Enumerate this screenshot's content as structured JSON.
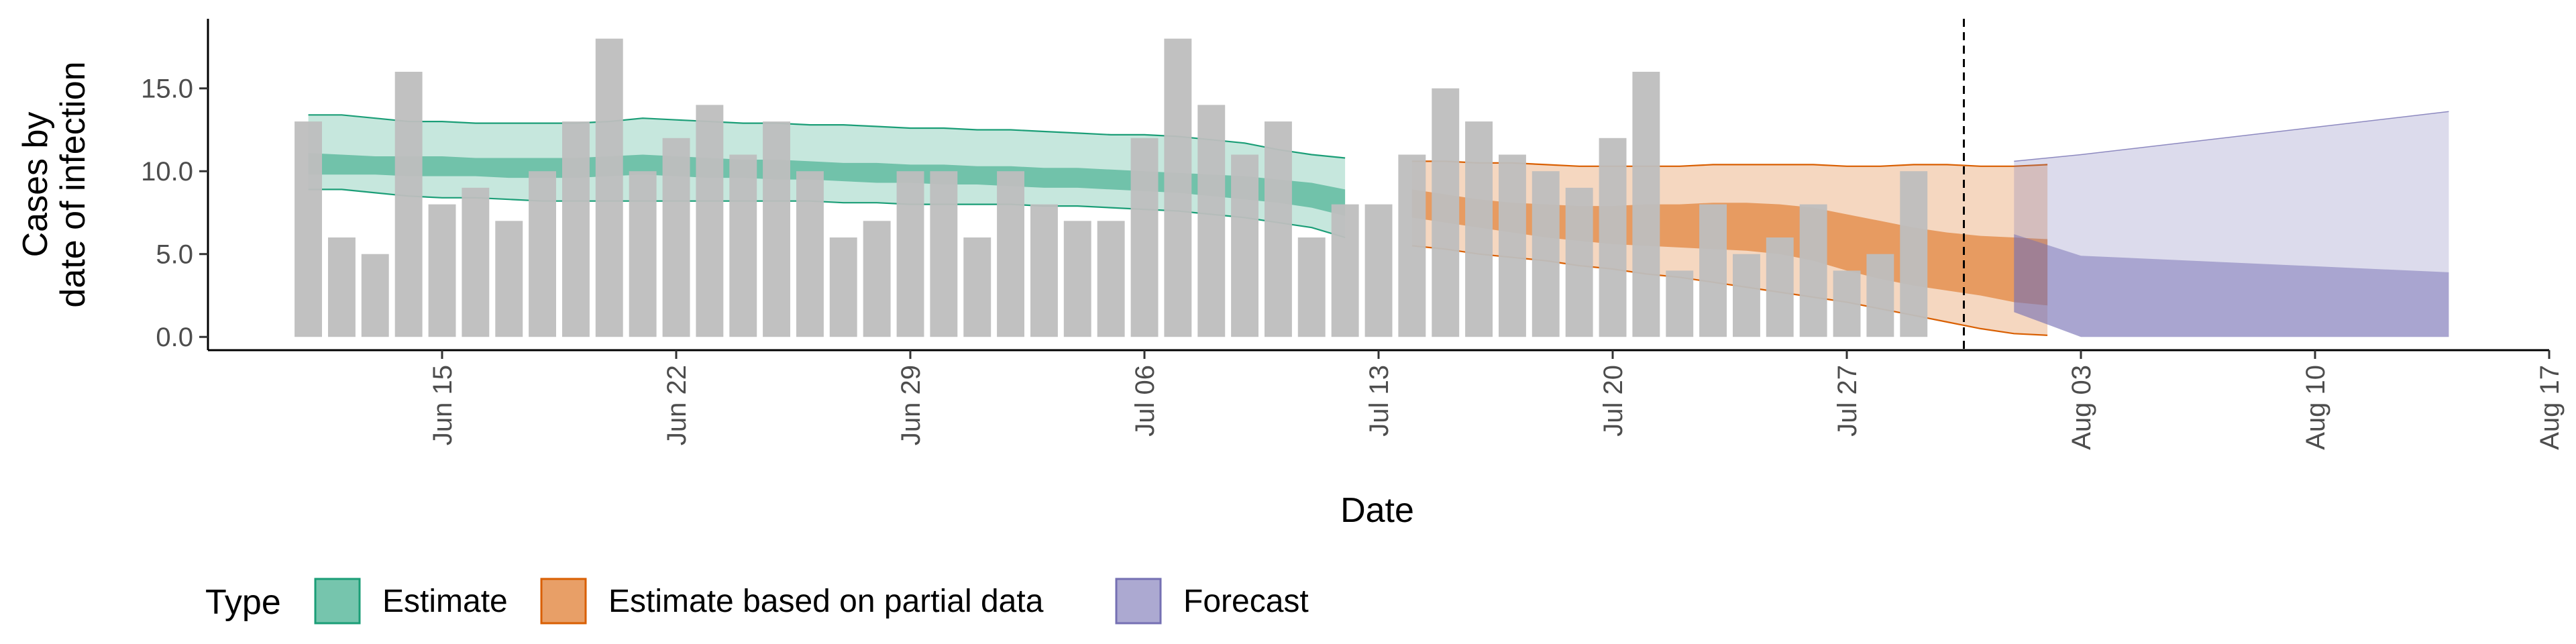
{
  "chart_data": {
    "type": "bar",
    "xlabel": "Date",
    "ylabel": [
      "Cases by",
      "date of infection"
    ],
    "xlim": [
      "2020-06-08",
      "2020-08-17"
    ],
    "ylim": [
      -0.8,
      19.2
    ],
    "y_ticks": [
      0.0,
      5.0,
      10.0,
      15.0
    ],
    "y_tick_labels": [
      "0.0",
      "5.0",
      "10.0",
      "15.0"
    ],
    "x_ticks": [
      "2020-06-15",
      "2020-06-22",
      "2020-06-29",
      "2020-07-06",
      "2020-07-13",
      "2020-07-20",
      "2020-07-27",
      "2020-08-03",
      "2020-08-10",
      "2020-08-17"
    ],
    "x_tick_labels": [
      "Jun 15",
      "Jun 22",
      "Jun 29",
      "Jul 06",
      "Jul 13",
      "Jul 20",
      "Jul 27",
      "Aug 03",
      "Aug 10",
      "Aug 17"
    ],
    "grid": false,
    "vline_date": "2020-07-31",
    "bar_color": "#bebebe",
    "reported_cases": {
      "start": "2020-06-11",
      "values": [
        13,
        6,
        5,
        16,
        8,
        9,
        7,
        10,
        13,
        18,
        10,
        12,
        14,
        11,
        13,
        10,
        6,
        7,
        10,
        10,
        6,
        10,
        8,
        7,
        7,
        12,
        18,
        14,
        11,
        13,
        6,
        8,
        8,
        11,
        15,
        13,
        11,
        10,
        9,
        12,
        16,
        4,
        8,
        5,
        6,
        8,
        4,
        5,
        10
      ]
    },
    "series": [
      {
        "name": "Estimate",
        "color": "#1b9e77",
        "start": "2020-06-11",
        "lower90": [
          8.9,
          8.9,
          8.7,
          8.5,
          8.4,
          8.4,
          8.3,
          8.2,
          8.2,
          8.2,
          8.2,
          8.2,
          8.2,
          8.2,
          8.2,
          8.2,
          8.1,
          8.1,
          8.0,
          8.0,
          8.0,
          8.0,
          7.9,
          7.9,
          7.8,
          7.7,
          7.6,
          7.4,
          7.2,
          6.9,
          6.6,
          6.0
        ],
        "lower50": [
          9.8,
          9.8,
          9.8,
          9.7,
          9.7,
          9.7,
          9.6,
          9.6,
          9.6,
          9.7,
          9.8,
          9.7,
          9.6,
          9.6,
          9.5,
          9.5,
          9.4,
          9.3,
          9.3,
          9.2,
          9.2,
          9.1,
          9.0,
          9.0,
          8.9,
          8.8,
          8.7,
          8.5,
          8.3,
          8.1,
          7.8,
          7.3
        ],
        "upper50": [
          11.1,
          11.0,
          10.9,
          10.9,
          10.9,
          10.8,
          10.8,
          10.8,
          10.8,
          10.9,
          11.0,
          10.9,
          10.8,
          10.7,
          10.7,
          10.6,
          10.5,
          10.5,
          10.4,
          10.4,
          10.3,
          10.3,
          10.2,
          10.2,
          10.1,
          10.0,
          9.9,
          9.8,
          9.7,
          9.5,
          9.3,
          8.9
        ],
        "upper90": [
          13.4,
          13.4,
          13.2,
          13.0,
          13.0,
          12.9,
          12.9,
          12.9,
          12.9,
          13.0,
          13.2,
          13.1,
          13.0,
          12.9,
          12.9,
          12.8,
          12.8,
          12.7,
          12.6,
          12.6,
          12.5,
          12.5,
          12.4,
          12.3,
          12.2,
          12.2,
          12.1,
          11.9,
          11.7,
          11.3,
          11.0,
          10.8
        ]
      },
      {
        "name": "Estimate based on partial data",
        "color": "#d95f02",
        "start": "2020-07-14",
        "lower90": [
          5.5,
          5.3,
          5.0,
          4.8,
          4.6,
          4.3,
          4.1,
          3.8,
          3.6,
          3.3,
          3.0,
          2.7,
          2.4,
          2.1,
          1.7,
          1.3,
          0.9,
          0.5,
          0.2,
          0.1
        ],
        "lower50": [
          7.2,
          6.9,
          6.6,
          6.3,
          6.0,
          5.8,
          5.6,
          5.5,
          5.4,
          5.3,
          5.2,
          5.0,
          4.6,
          4.0,
          3.5,
          3.1,
          2.8,
          2.5,
          2.1,
          1.9
        ],
        "upper50": [
          8.9,
          8.6,
          8.3,
          8.1,
          8.0,
          7.9,
          7.9,
          8.0,
          8.0,
          8.1,
          8.1,
          8.0,
          7.8,
          7.4,
          7.0,
          6.6,
          6.3,
          6.1,
          6.0,
          5.9
        ],
        "upper90": [
          10.6,
          10.6,
          10.5,
          10.5,
          10.4,
          10.3,
          10.3,
          10.3,
          10.3,
          10.4,
          10.4,
          10.4,
          10.4,
          10.3,
          10.3,
          10.4,
          10.4,
          10.3,
          10.3,
          10.4
        ]
      },
      {
        "name": "Forecast",
        "color": "#7570b3",
        "dates": [
          "2020-08-01",
          "2020-08-03",
          "2020-08-14"
        ],
        "lower90": [
          1.5,
          0.0,
          0.0
        ],
        "lower50": [
          1.5,
          0.0,
          0.0
        ],
        "upper50": [
          6.2,
          4.9,
          3.9
        ],
        "upper90": [
          10.6,
          11.0,
          13.6
        ]
      }
    ],
    "legend": {
      "title": "Type",
      "position": "bottom",
      "entries": [
        {
          "label": "Estimate",
          "fill": "#1b9e77",
          "stroke": "#1b9e77"
        },
        {
          "label": "Estimate based on partial data",
          "fill": "#d95f02",
          "stroke": "#d95f02"
        },
        {
          "label": "Forecast",
          "fill": "#7570b3",
          "stroke": "#7570b3"
        }
      ]
    }
  }
}
